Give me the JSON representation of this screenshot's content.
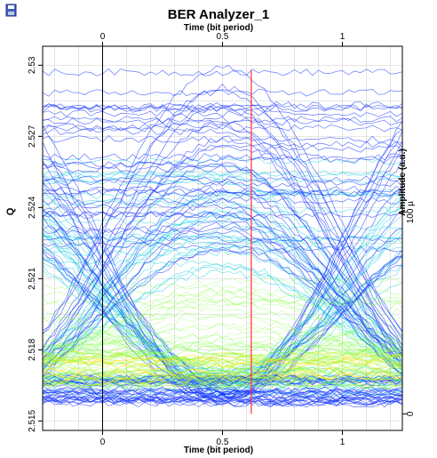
{
  "window": {
    "title": "BER Analyzer_1",
    "icon": "save-disk-icon"
  },
  "chart_data": {
    "type": "eye-diagram",
    "title": "BER Analyzer_1",
    "xlabel_top": "Time (bit period)",
    "xlabel_bottom": "Time (bit period)",
    "ylabel_left": "Q",
    "ylabel_right": "Amplitude (a.u.)",
    "x_ticks": [
      "0",
      "0.5",
      "1"
    ],
    "x_tick_values": [
      0,
      0.5,
      1
    ],
    "xlim": [
      -0.25,
      1.25
    ],
    "y_left_ticks": [
      "2.515",
      "2.518",
      "2.521",
      "2.524",
      "2.527",
      "2.53"
    ],
    "y_left_tick_values": [
      2.515,
      2.518,
      2.521,
      2.524,
      2.527,
      2.53
    ],
    "ylim_left": [
      2.5146,
      2.5308
    ],
    "y_right_ticks": [
      "0",
      "100 µ"
    ],
    "y_right_tick_values": [
      0,
      100
    ],
    "decision_time": 0.62,
    "grid": true,
    "colors": {
      "trace_low": "#1030ff",
      "trace_mid": "#00c8e0",
      "trace_high": "#80ff40",
      "trace_peak": "#ffe000",
      "decision_line": "#ff3030",
      "grid": "#d8d8d8"
    }
  }
}
